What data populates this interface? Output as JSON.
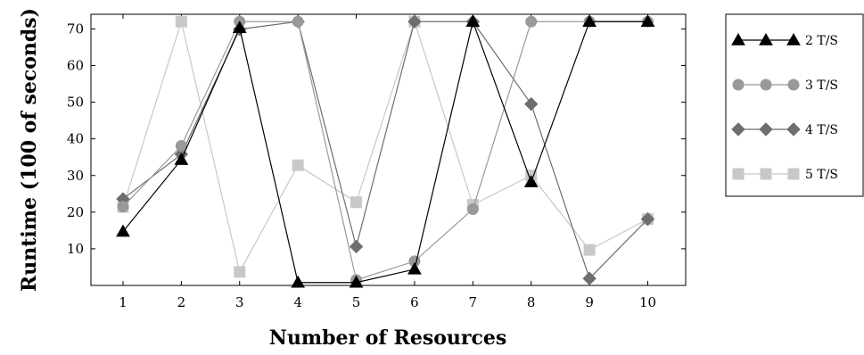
{
  "chart_data": {
    "type": "line",
    "title": "",
    "xlabel": "Number of Resources",
    "ylabel": "Runtime (100 of seconds)",
    "x": [
      1,
      2,
      3,
      4,
      5,
      6,
      7,
      8,
      9,
      10
    ],
    "xlim": [
      0.45,
      10.65
    ],
    "ylim": [
      0,
      74
    ],
    "yticks": [
      10,
      20,
      30,
      40,
      50,
      60,
      70
    ],
    "grid": false,
    "legend_placement": "right",
    "series": [
      {
        "name": "2 T/S",
        "marker": "triangle",
        "color": "#000000",
        "values": [
          14.7,
          34.3,
          70.3,
          0.8,
          0.8,
          4.4,
          72.0,
          28.2,
          72.0,
          72.0
        ]
      },
      {
        "name": "3 T/S",
        "marker": "circle",
        "color": "#999999",
        "values": [
          21.5,
          38.1,
          72.0,
          72.0,
          1.5,
          6.6,
          20.8,
          72.0,
          72.0,
          72.0
        ]
      },
      {
        "name": "4 T/S",
        "marker": "diamond",
        "color": "#6e6e6e",
        "values": [
          23.6,
          35.8,
          69.9,
          72.0,
          10.6,
          72.0,
          72.0,
          49.5,
          1.9,
          18.1
        ]
      },
      {
        "name": "5 T/S",
        "marker": "square",
        "color": "#c8c8c8",
        "values": [
          21.4,
          72.0,
          3.7,
          32.8,
          22.7,
          72.0,
          22.0,
          30.0,
          9.7,
          18.1
        ]
      }
    ]
  }
}
